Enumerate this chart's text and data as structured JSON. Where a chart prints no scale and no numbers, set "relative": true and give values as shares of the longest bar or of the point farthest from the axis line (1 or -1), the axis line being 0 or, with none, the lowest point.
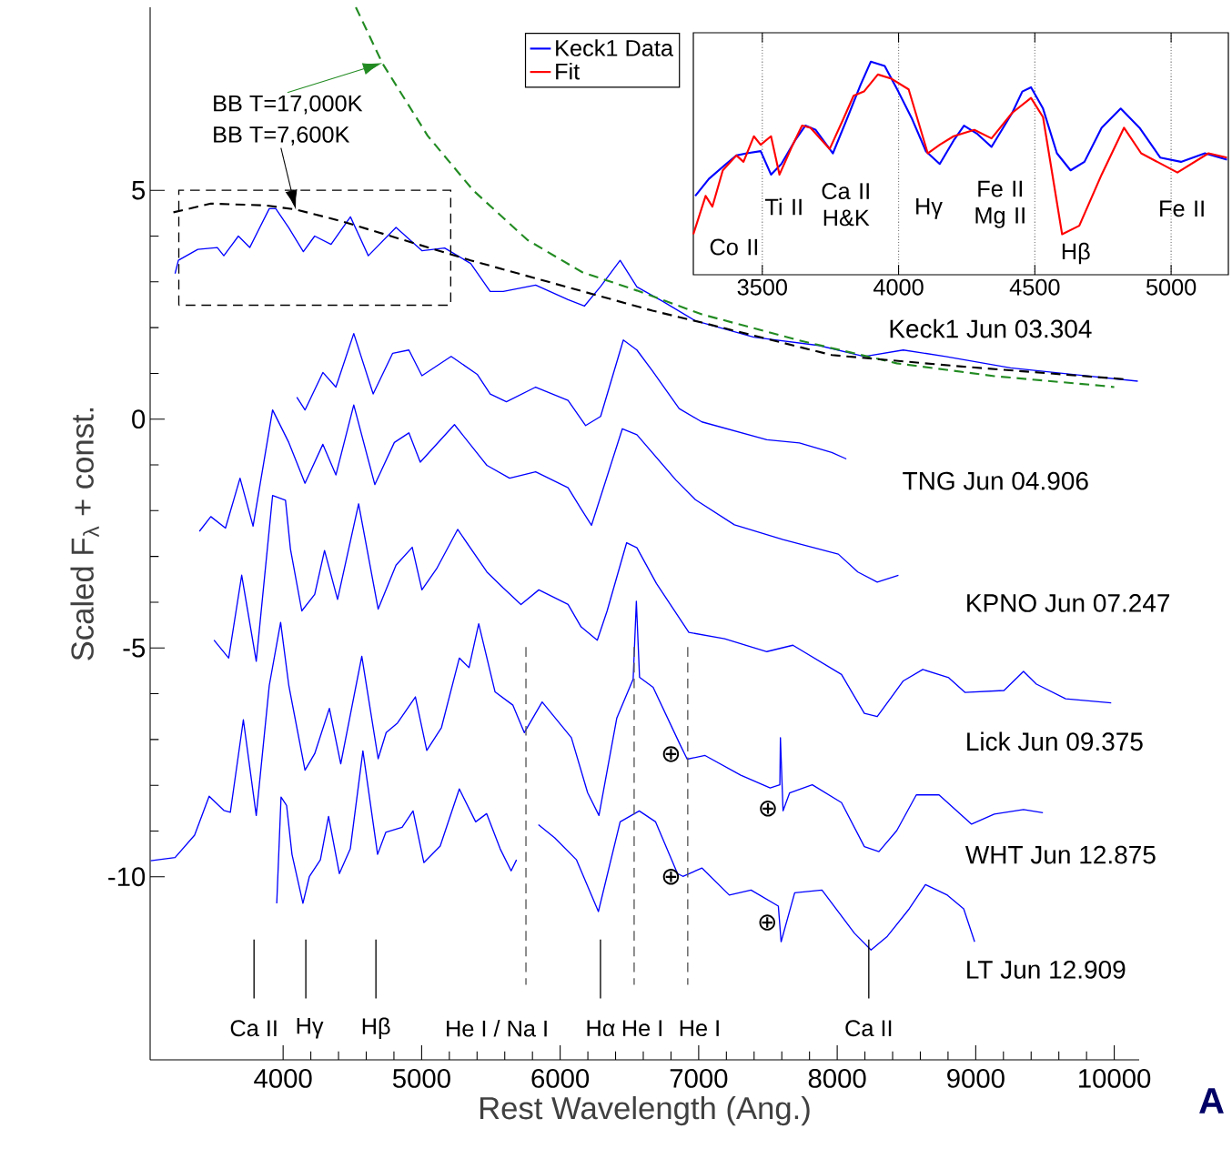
{
  "chart_data": [
    {
      "type": "line",
      "xlabel": "Rest Wavelength (Ang.)",
      "ylabel": "Scaled F$_{λ}$ + const.",
      "xlim": [
        3040,
        10180
      ],
      "ylim": [
        -14,
        9
      ],
      "xticks": [
        4000,
        5000,
        6000,
        7000,
        8000,
        9000,
        10000
      ],
      "yticks": [
        -10,
        -5,
        0,
        5
      ],
      "marker": "none",
      "series": [
        {
          "name": "Keck1 Jun 03.304",
          "color": "#0000ff",
          "line_style": "solid",
          "x": [
            3220,
            3244,
            3384,
            3525,
            3572,
            3677,
            3759,
            3900,
            3947,
            4041,
            4146,
            4228,
            4346,
            4486,
            4615,
            4815,
            5002,
            5166,
            5354,
            5495,
            5589,
            5823,
            6057,
            6175,
            6292,
            6433,
            6554,
            6742,
            6976,
            7398,
            7867,
            8196,
            8477,
            8782,
            9251,
            9720,
            10170
          ],
          "values": [
            3.18,
            3.47,
            3.71,
            3.75,
            3.57,
            4.0,
            3.75,
            4.6,
            4.6,
            4.18,
            3.66,
            4.0,
            3.82,
            4.42,
            3.57,
            4.19,
            3.68,
            3.74,
            3.4,
            2.79,
            2.79,
            2.93,
            2.61,
            2.47,
            2.9,
            3.47,
            2.89,
            2.57,
            2.15,
            1.79,
            1.61,
            1.37,
            1.51,
            1.37,
            1.12,
            0.97,
            0.83
          ]
        },
        {
          "name": "TNG Jun 04.906",
          "color": "#0000ff",
          "line_style": "solid",
          "x": [
            4099,
            4158,
            4287,
            4381,
            4510,
            4650,
            4791,
            4908,
            5002,
            5213,
            5401,
            5495,
            5612,
            5823,
            6057,
            6184,
            6292,
            6456,
            6554,
            6667,
            6859,
            7023,
            7492,
            7727,
            7961,
            8066
          ],
          "values": [
            0.48,
            0.2,
            1.02,
            0.7,
            1.87,
            0.55,
            1.44,
            1.51,
            0.95,
            1.37,
            0.98,
            0.55,
            0.38,
            0.7,
            0.41,
            -0.14,
            0.06,
            1.73,
            1.51,
            1.05,
            0.23,
            -0.06,
            -0.45,
            -0.52,
            -0.73,
            -0.87
          ]
        },
        {
          "name": "KPNO Jun 07.247",
          "color": "#0000ff",
          "line_style": "solid",
          "x": [
            3396,
            3478,
            3584,
            3689,
            3783,
            3924,
            4041,
            4158,
            4287,
            4381,
            4510,
            4662,
            4803,
            4908,
            4990,
            5237,
            5471,
            5635,
            5823,
            6057,
            6151,
            6226,
            6449,
            6554,
            6835,
            6976,
            7258,
            7609,
            8008,
            8149,
            8289,
            8442
          ],
          "values": [
            -2.45,
            -2.13,
            -2.38,
            -1.29,
            -2.34,
            0.2,
            -0.51,
            -1.4,
            -0.55,
            -1.22,
            0.31,
            -1.43,
            -0.51,
            -0.3,
            -0.94,
            -0.12,
            -1.01,
            -1.29,
            -1.15,
            -1.5,
            -1.96,
            -2.32,
            -0.21,
            -0.34,
            -1.33,
            -1.76,
            -2.31,
            -2.63,
            -2.95,
            -3.34,
            -3.56,
            -3.41
          ]
        },
        {
          "name": "Lick Jun 09.375",
          "color": "#0000ff",
          "line_style": "solid",
          "x": [
            3501,
            3607,
            3701,
            3806,
            3924,
            4017,
            4053,
            4135,
            4228,
            4299,
            4393,
            4545,
            4686,
            4815,
            4932,
            5002,
            5108,
            5260,
            5471,
            5589,
            5717,
            5846,
            6057,
            6151,
            6268,
            6339,
            6480,
            6554,
            6695,
            6929,
            7187,
            7492,
            7680,
            8031,
            8196,
            8289,
            8477,
            8618,
            8805,
            8922,
            9204,
            9345,
            9438,
            9649,
            9978
          ],
          "values": [
            -4.83,
            -5.22,
            -3.41,
            -5.29,
            -1.67,
            -1.77,
            -2.84,
            -4.19,
            -3.83,
            -2.87,
            -3.94,
            -1.85,
            -4.15,
            -3.19,
            -2.8,
            -3.73,
            -3.27,
            -2.41,
            -3.34,
            -3.69,
            -4.05,
            -3.73,
            -4.05,
            -4.54,
            -4.83,
            -4.19,
            -2.7,
            -2.81,
            -3.59,
            -4.66,
            -4.8,
            -5.08,
            -4.94,
            -5.58,
            -6.43,
            -6.5,
            -5.72,
            -5.47,
            -5.65,
            -5.97,
            -5.93,
            -5.51,
            -5.79,
            -6.11,
            -6.2
          ]
        },
        {
          "name": "WHT Jun 12.875",
          "color": "#0000ff",
          "line_style": "solid",
          "x": [
            3044,
            3220,
            3361,
            3466,
            3572,
            3619,
            3713,
            3806,
            3900,
            3982,
            4041,
            4158,
            4228,
            4334,
            4416,
            4568,
            4686,
            4744,
            4826,
            4955,
            5037,
            5143,
            5272,
            5342,
            5412,
            5530,
            5659,
            5741,
            5870,
            6081,
            6198,
            6280,
            6409,
            6527,
            6550,
            6573,
            6671,
            6859,
            6917,
            7046,
            7304,
            7516,
            7586,
            7590,
            7609,
            7656,
            7820,
            8031,
            8196,
            8301,
            8430,
            8571,
            8735,
            8970,
            9134,
            9345,
            9485
          ],
          "values": [
            -9.65,
            -9.58,
            -9.09,
            -8.24,
            -8.55,
            -8.59,
            -6.57,
            -8.66,
            -5.82,
            -4.44,
            -5.82,
            -7.67,
            -7.31,
            -6.32,
            -7.53,
            -5.18,
            -7.42,
            -6.85,
            -6.64,
            -6.07,
            -7.24,
            -6.74,
            -5.22,
            -5.43,
            -4.47,
            -5.96,
            -6.25,
            -6.85,
            -6.18,
            -6.96,
            -8.16,
            -8.66,
            -6.53,
            -5.68,
            -3.98,
            -5.64,
            -5.86,
            -7.07,
            -7.43,
            -7.35,
            -7.78,
            -8.06,
            -7.99,
            -6.96,
            -8.56,
            -8.17,
            -7.99,
            -8.38,
            -9.34,
            -9.45,
            -8.99,
            -8.21,
            -8.21,
            -8.85,
            -8.63,
            -8.53,
            -8.6
          ]
        },
        {
          "name": "LT Jun 12.909",
          "color": "#0000ff",
          "line_style": "solid",
          "x": [
            3954,
            3985,
            4025,
            4064,
            4143,
            4190,
            4269,
            4328,
            4406,
            4485,
            4576,
            4682,
            4741,
            4859,
            4938,
            5016,
            5134,
            5272,
            5390,
            5469,
            5567,
            5646,
            5685,
            5760,
            5843,
            5961,
            6118,
            6276,
            6433,
            6571,
            6689,
            6847,
            6886,
            7024,
            7221,
            7378,
            7575,
            7595,
            7693,
            7890,
            8126,
            8244,
            8362,
            8520,
            8637,
            8795,
            8913,
            8992
          ],
          "values": [
            -10.58,
            -8.26,
            -8.44,
            -9.51,
            -10.58,
            -9.99,
            -9.63,
            -8.68,
            -9.93,
            -9.39,
            -7.25,
            -9.51,
            -9.03,
            -8.92,
            -8.56,
            -9.69,
            -9.33,
            -8.08,
            -8.8,
            -8.62,
            -9.39,
            -9.87,
            -9.63,
            null,
            -8.86,
            -9.15,
            -9.63,
            -10.76,
            -8.8,
            -8.56,
            -8.8,
            -9.93,
            -9.99,
            -9.81,
            -10.4,
            -10.29,
            -10.64,
            -11.42,
            -10.35,
            -10.29,
            -11.24,
            -11.6,
            -11.3,
            -10.7,
            -10.17,
            -10.4,
            -10.7,
            -11.42
          ]
        },
        {
          "name": "BB T=17,000K",
          "color": "#228b22",
          "line_style": "dashed",
          "x": [
            4525,
            4716,
            5044,
            5372,
            5766,
            6160,
            6554,
            7023,
            7726,
            8430,
            9134,
            9908,
            10000
          ],
          "values": [
            9.0,
            7.78,
            6.19,
            5.0,
            3.91,
            3.21,
            2.81,
            2.29,
            1.72,
            1.22,
            0.94,
            0.73,
            0.7
          ]
        },
        {
          "name": "BB T=7,600K",
          "color": "#000000",
          "line_style": "dashed",
          "x": [
            3208,
            3478,
            3877,
            4092,
            4416,
            5354,
            6667,
            7023,
            7961,
            8899,
            9955,
            10090
          ],
          "values": [
            4.52,
            4.71,
            4.67,
            4.58,
            4.33,
            3.47,
            2.37,
            2.11,
            1.4,
            1.15,
            0.9,
            0.87
          ]
        }
      ],
      "ref_lines": [
        {
          "axis": "x",
          "value": 3790,
          "label": "Ca II",
          "line_style": "solid",
          "color": "#000000"
        },
        {
          "axis": "x",
          "value": 4164,
          "label": "Hγ",
          "line_style": "solid",
          "color": "#000000"
        },
        {
          "axis": "x",
          "value": 4670,
          "label": "Hβ",
          "line_style": "solid",
          "color": "#000000"
        },
        {
          "axis": "x",
          "value": 5753,
          "label": "He I / Na I",
          "line_style": "dashed",
          "color": "#555555"
        },
        {
          "axis": "x",
          "value": 6291,
          "label": "Hα",
          "line_style": "solid",
          "color": "#000000"
        },
        {
          "axis": "x",
          "value": 6534,
          "label": "He I",
          "line_style": "dashed",
          "color": "#555555"
        },
        {
          "axis": "x",
          "value": 6921,
          "label": "He I",
          "line_style": "dashed",
          "color": "#555555"
        },
        {
          "axis": "x",
          "value": 8228,
          "label": "Ca II",
          "line_style": "solid",
          "color": "#000000"
        }
      ],
      "annotations": [
        "⊕",
        "⊕",
        "⊕",
        "⊕",
        "A"
      ]
    },
    {
      "type": "line",
      "relative": true,
      "xlim": [
        3247,
        5210
      ],
      "xticks": [
        3500,
        4000,
        4500,
        5000
      ],
      "grid": "x",
      "legend": "left",
      "marker": "none",
      "series": [
        {
          "name": "Keck1 Data",
          "color": "#0000ff",
          "x": [
            3254,
            3304,
            3367,
            3405,
            3443,
            3494,
            3532,
            3570,
            3620,
            3658,
            3696,
            3759,
            3810,
            3860,
            3898,
            3949,
            3999,
            4050,
            4100,
            4151,
            4202,
            4240,
            4290,
            4341,
            4417,
            4454,
            4486,
            4530,
            4581,
            4631,
            4682,
            4745,
            4815,
            4884,
            4960,
            5036,
            5124,
            5205
          ],
          "values": [
            0.37,
            0.45,
            0.52,
            0.56,
            0.57,
            0.58,
            0.47,
            0.52,
            0.63,
            0.7,
            0.68,
            0.57,
            0.73,
            0.89,
            1.0,
            0.98,
            0.86,
            0.73,
            0.58,
            0.52,
            0.63,
            0.7,
            0.66,
            0.6,
            0.76,
            0.86,
            0.88,
            0.78,
            0.57,
            0.49,
            0.53,
            0.69,
            0.78,
            0.69,
            0.55,
            0.53,
            0.57,
            0.54
          ]
        },
        {
          "name": "Fit",
          "color": "#ff0000",
          "x": [
            3247,
            3292,
            3317,
            3355,
            3405,
            3431,
            3469,
            3494,
            3532,
            3563,
            3608,
            3646,
            3677,
            3747,
            3797,
            3835,
            3873,
            3924,
            3974,
            4037,
            4107,
            4151,
            4202,
            4278,
            4341,
            4417,
            4486,
            4530,
            4600,
            4663,
            4745,
            4827,
            4890,
            5023,
            5137,
            5205
          ],
          "values": [
            0.19,
            0.37,
            0.32,
            0.49,
            0.56,
            0.53,
            0.65,
            0.61,
            0.65,
            0.47,
            0.6,
            0.7,
            0.69,
            0.59,
            0.73,
            0.84,
            0.86,
            0.94,
            0.92,
            0.87,
            0.57,
            0.61,
            0.65,
            0.68,
            0.64,
            0.76,
            0.83,
            0.74,
            0.19,
            0.23,
            0.47,
            0.69,
            0.57,
            0.48,
            0.57,
            0.55
          ]
        }
      ],
      "annotations": [
        "Co II",
        "Ti II",
        "Ca II H&K",
        "Hγ",
        "Fe II Mg II",
        "Hβ",
        "Fe II"
      ]
    }
  ]
}
